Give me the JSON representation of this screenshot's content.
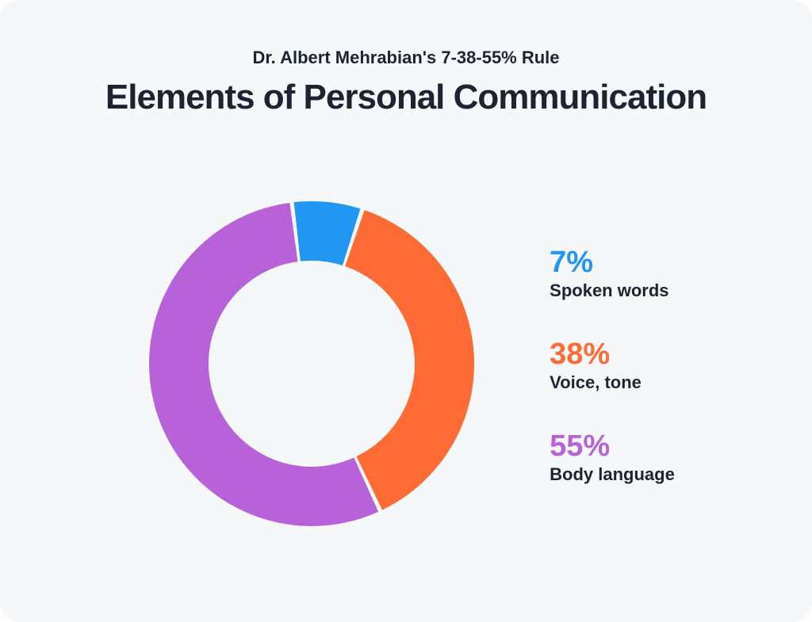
{
  "card": {
    "background_color": "#f6f7f9",
    "border_radius": 24
  },
  "header": {
    "subtitle": "Dr. Albert Mehrabian's 7-38-55% Rule",
    "subtitle_fontsize": 22,
    "subtitle_color": "#1e2332",
    "title": "Elements of Personal Communication",
    "title_fontsize": 44,
    "title_color": "#1e2332"
  },
  "chart": {
    "type": "donut",
    "size": 440,
    "outer_radius": 205,
    "inner_radius": 130,
    "start_angle": -97,
    "gap_deg": 1.5,
    "background_color": "#f6f7f9",
    "slices": [
      {
        "value": 7,
        "color": "#2196f3",
        "pct_label": "7%",
        "label": "Spoken words"
      },
      {
        "value": 38,
        "color": "#ff6b35",
        "pct_label": "38%",
        "label": "Voice, tone"
      },
      {
        "value": 55,
        "color": "#b762d8",
        "pct_label": "55%",
        "label": "Body language"
      }
    ]
  },
  "legend": {
    "pct_fontsize": 38,
    "label_fontsize": 22,
    "label_color": "#1e2332"
  }
}
